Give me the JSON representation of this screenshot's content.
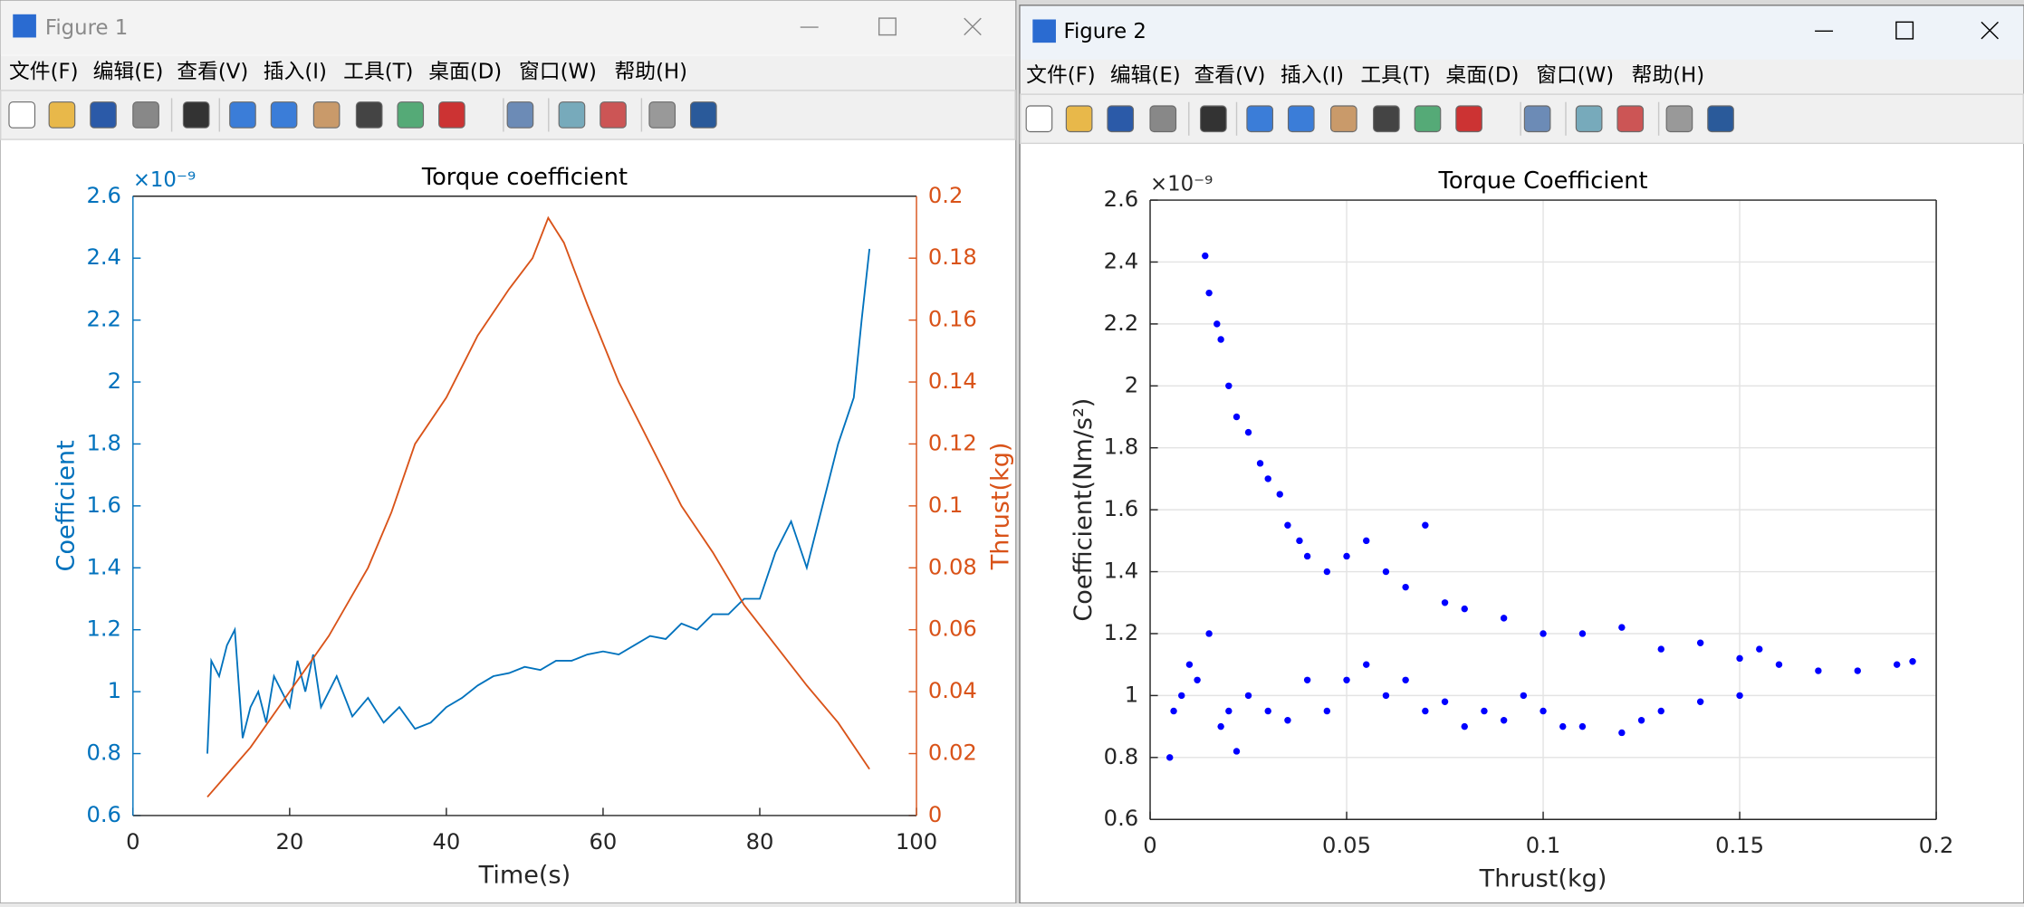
{
  "windows": [
    {
      "title": "Figure 1",
      "menu": [
        "文件(F)",
        "编辑(E)",
        "查看(V)",
        "插入(I)",
        "工具(T)",
        "桌面(D)",
        "窗口(W)",
        "帮助(H)"
      ]
    },
    {
      "title": "Figure 2",
      "menu": [
        "文件(F)",
        "编辑(E)",
        "查看(V)",
        "插入(I)",
        "工具(T)",
        "桌面(D)",
        "窗口(W)",
        "帮助(H)"
      ]
    }
  ],
  "chart_data": [
    {
      "type": "line",
      "title": "Torque coefficient",
      "xlabel": "Time(s)",
      "ylabel": "Coefficient",
      "y2label": "Thrust(kg)",
      "y_multiplier": "×10⁻⁹",
      "xlim": [
        0,
        100
      ],
      "xticks": [
        0,
        20,
        40,
        60,
        80,
        100
      ],
      "ylim": [
        0.6,
        2.6
      ],
      "yticks": [
        0.6,
        0.8,
        1,
        1.2,
        1.4,
        1.6,
        1.8,
        2,
        2.2,
        2.4,
        2.6
      ],
      "y2lim": [
        0,
        0.2
      ],
      "y2ticks": [
        0,
        0.02,
        0.04,
        0.06,
        0.08,
        0.1,
        0.12,
        0.14,
        0.16,
        0.18,
        0.2
      ],
      "grid": false,
      "ycolor": "#0072BD",
      "y2color": "#D95319",
      "series": [
        {
          "color": "#0072BD",
          "axis": "y",
          "x": [
            9.5,
            10,
            11,
            12,
            13,
            14,
            15,
            16,
            17,
            18,
            20,
            21,
            22,
            23,
            24,
            26,
            28,
            30,
            32,
            34,
            36,
            38,
            40,
            42,
            44,
            46,
            48,
            50,
            52,
            54,
            56,
            58,
            60,
            62,
            64,
            66,
            68,
            70,
            72,
            74,
            76,
            78,
            80,
            82,
            84,
            86,
            88,
            90,
            92,
            93,
            94
          ],
          "values": [
            0.8,
            1.1,
            1.05,
            1.15,
            1.2,
            0.85,
            0.95,
            1.0,
            0.9,
            1.05,
            0.95,
            1.1,
            1.0,
            1.12,
            0.95,
            1.05,
            0.92,
            0.98,
            0.9,
            0.95,
            0.88,
            0.9,
            0.95,
            0.98,
            1.02,
            1.05,
            1.06,
            1.08,
            1.07,
            1.1,
            1.1,
            1.12,
            1.13,
            1.12,
            1.15,
            1.18,
            1.17,
            1.22,
            1.2,
            1.25,
            1.25,
            1.3,
            1.3,
            1.45,
            1.55,
            1.4,
            1.6,
            1.8,
            1.95,
            2.2,
            2.43
          ]
        },
        {
          "color": "#D95319",
          "axis": "y2",
          "x": [
            9.5,
            15,
            20,
            25,
            30,
            33,
            36,
            40,
            44,
            48,
            51,
            53,
            55,
            58,
            62,
            66,
            70,
            74,
            78,
            82,
            86,
            90,
            94
          ],
          "values": [
            0.006,
            0.022,
            0.04,
            0.058,
            0.08,
            0.098,
            0.12,
            0.135,
            0.155,
            0.17,
            0.18,
            0.193,
            0.185,
            0.165,
            0.14,
            0.12,
            0.1,
            0.085,
            0.068,
            0.055,
            0.042,
            0.03,
            0.015
          ]
        }
      ]
    },
    {
      "type": "scatter",
      "title": "Torque Coefficient",
      "xlabel": "Thrust(kg)",
      "ylabel": "Coefficient(Nm/s²)",
      "y_multiplier": "×10⁻⁹",
      "xlim": [
        0,
        0.2
      ],
      "xticks": [
        0,
        0.05,
        0.1,
        0.15,
        0.2
      ],
      "ylim": [
        0.6,
        2.6
      ],
      "yticks": [
        0.6,
        0.8,
        1,
        1.2,
        1.4,
        1.6,
        1.8,
        2,
        2.2,
        2.4,
        2.6
      ],
      "grid": true,
      "ycolor": "#262626",
      "series": [
        {
          "color": "#0000ff",
          "x": [
            0.014,
            0.015,
            0.017,
            0.018,
            0.02,
            0.022,
            0.025,
            0.028,
            0.03,
            0.033,
            0.035,
            0.038,
            0.04,
            0.045,
            0.05,
            0.055,
            0.06,
            0.065,
            0.07,
            0.075,
            0.08,
            0.09,
            0.1,
            0.11,
            0.12,
            0.13,
            0.14,
            0.15,
            0.16,
            0.17,
            0.18,
            0.19,
            0.194,
            0.005,
            0.006,
            0.008,
            0.01,
            0.012,
            0.015,
            0.018,
            0.02,
            0.022,
            0.025,
            0.03,
            0.035,
            0.04,
            0.045,
            0.05,
            0.055,
            0.06,
            0.065,
            0.07,
            0.075,
            0.08,
            0.085,
            0.09,
            0.095,
            0.1,
            0.105,
            0.11,
            0.12,
            0.125,
            0.13,
            0.14,
            0.15,
            0.155
          ],
          "values": [
            2.42,
            2.3,
            2.2,
            2.15,
            2.0,
            1.9,
            1.85,
            1.75,
            1.7,
            1.65,
            1.55,
            1.5,
            1.45,
            1.4,
            1.45,
            1.5,
            1.4,
            1.35,
            1.55,
            1.3,
            1.28,
            1.25,
            1.2,
            1.2,
            1.22,
            1.15,
            1.17,
            1.12,
            1.1,
            1.08,
            1.08,
            1.1,
            1.11,
            0.8,
            0.95,
            1.0,
            1.1,
            1.05,
            1.2,
            0.9,
            0.95,
            0.82,
            1.0,
            0.95,
            0.92,
            1.05,
            0.95,
            1.05,
            1.1,
            1.0,
            1.05,
            0.95,
            0.98,
            0.9,
            0.95,
            0.92,
            1.0,
            0.95,
            0.9,
            0.9,
            0.88,
            0.92,
            0.95,
            0.98,
            1.0,
            1.15
          ]
        }
      ]
    }
  ]
}
